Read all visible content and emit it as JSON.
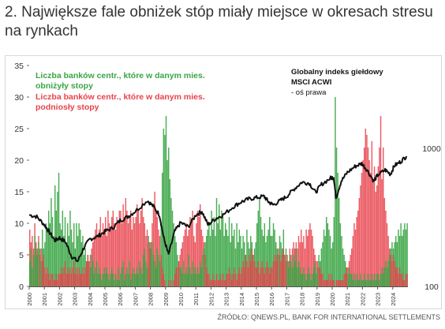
{
  "page": {
    "title": "2. Największe fale obniżek stóp miały miejsce w okresach stresu na rynkach",
    "source": "ŹRÓDŁO: QNEWS.PL, BANK FOR INTERNATIONAL SETTLEMENTS"
  },
  "colors": {
    "cut": "#3aa545",
    "hike": "#e8424b",
    "index": "#111111"
  },
  "chart_data": {
    "type": "bar",
    "left_axis": {
      "ylim": [
        0,
        35
      ],
      "ticks": [
        0,
        5,
        10,
        15,
        20,
        25,
        30,
        35
      ]
    },
    "right_axis": {
      "scale": "log",
      "ylim": [
        100,
        4000
      ],
      "ticks": [
        100,
        1000
      ]
    },
    "x_ticks": [
      "2000",
      "2001",
      "2002",
      "2003",
      "2004",
      "2005",
      "2006",
      "2007",
      "2008",
      "2009",
      "2010",
      "2011",
      "2012",
      "2013",
      "2014",
      "2015",
      "2016",
      "2017",
      "2018",
      "2019",
      "2020",
      "2021",
      "2022",
      "2023",
      "2024"
    ],
    "xlim": [
      2000,
      2025
    ],
    "grid": false,
    "legend": {
      "cut_label_1": "Liczba banków centr., które w danym mies.",
      "cut_label_2": "obniżyły stopy",
      "hike_label_1": "Liczba banków centr., które w danym mies.",
      "hike_label_2": "podniosły stopy",
      "index_label_1": "Globalny indeks giełdowy",
      "index_label_2": "MSCI ACWI",
      "index_label_3": "- oś prawa"
    },
    "series": [
      {
        "name": "obniżyły stopy",
        "kind": "monthly_bars",
        "yearly_monthly_values": [
          [
            4,
            6,
            3,
            5,
            8,
            6,
            5,
            7,
            6,
            4,
            9,
            6
          ],
          [
            7,
            10,
            9,
            12,
            10,
            14,
            11,
            8,
            16,
            12,
            15,
            18
          ],
          [
            10,
            9,
            12,
            8,
            11,
            7,
            10,
            8,
            12,
            9,
            7,
            10
          ],
          [
            6,
            10,
            8,
            10,
            9,
            7,
            8,
            5,
            6,
            4,
            5,
            4
          ],
          [
            3,
            5,
            4,
            2,
            3,
            4,
            2,
            3,
            2,
            1,
            2,
            3
          ],
          [
            2,
            3,
            2,
            1,
            2,
            3,
            2,
            1,
            2,
            1,
            3,
            1
          ],
          [
            2,
            3,
            4,
            1,
            2,
            3,
            2,
            4,
            1,
            2,
            3,
            2
          ],
          [
            2,
            3,
            2,
            4,
            3,
            2,
            5,
            6,
            4,
            3,
            8,
            7
          ],
          [
            6,
            7,
            5,
            4,
            3,
            6,
            5,
            4,
            10,
            18,
            25,
            24
          ],
          [
            27,
            20,
            22,
            17,
            14,
            12,
            10,
            8,
            7,
            5,
            4,
            3
          ],
          [
            3,
            2,
            4,
            2,
            3,
            2,
            5,
            3,
            2,
            4,
            2,
            3
          ],
          [
            2,
            3,
            2,
            4,
            3,
            5,
            6,
            7,
            8,
            9,
            10,
            8
          ],
          [
            12,
            9,
            11,
            8,
            14,
            10,
            13,
            9,
            12,
            11,
            8,
            10
          ],
          [
            9,
            8,
            11,
            7,
            10,
            8,
            9,
            6,
            10,
            7,
            9,
            8
          ],
          [
            6,
            8,
            7,
            5,
            9,
            7,
            6,
            8,
            7,
            5,
            6,
            7
          ],
          [
            10,
            12,
            14,
            11,
            9,
            8,
            10,
            7,
            8,
            9,
            11,
            8
          ],
          [
            8,
            10,
            9,
            7,
            6,
            5,
            8,
            7,
            6,
            9,
            5,
            6
          ],
          [
            4,
            3,
            5,
            4,
            3,
            5,
            4,
            6,
            3,
            4,
            3,
            2
          ],
          [
            2,
            3,
            2,
            1,
            2,
            3,
            2,
            1,
            2,
            3,
            4,
            2
          ],
          [
            3,
            5,
            4,
            6,
            7,
            9,
            8,
            11,
            10,
            9,
            8,
            6
          ],
          [
            7,
            11,
            30,
            22,
            18,
            14,
            10,
            8,
            6,
            5,
            4,
            3
          ],
          [
            2,
            3,
            2,
            2,
            1,
            2,
            1,
            2,
            1,
            1,
            2,
            1
          ],
          [
            1,
            2,
            1,
            1,
            2,
            1,
            1,
            2,
            1,
            2,
            1,
            2
          ],
          [
            2,
            1,
            2,
            3,
            2,
            3,
            4,
            3,
            4,
            5,
            6,
            7
          ],
          [
            6,
            7,
            8,
            7,
            9,
            8,
            10,
            8,
            9,
            10,
            9,
            10
          ]
        ]
      },
      {
        "name": "podniosły stopy",
        "kind": "monthly_bars",
        "yearly_monthly_values": [
          [
            9,
            7,
            8,
            6,
            10,
            7,
            6,
            8,
            5,
            6,
            4,
            5
          ],
          [
            3,
            2,
            3,
            2,
            1,
            2,
            2,
            1,
            1,
            2,
            1,
            2
          ],
          [
            2,
            3,
            2,
            3,
            4,
            2,
            3,
            2,
            3,
            2,
            3,
            4
          ],
          [
            2,
            3,
            2,
            3,
            2,
            2,
            3,
            2,
            3,
            4,
            5,
            4
          ],
          [
            5,
            6,
            7,
            8,
            9,
            10,
            8,
            9,
            11,
            8,
            10,
            9
          ],
          [
            11,
            8,
            12,
            10,
            9,
            11,
            12,
            10,
            9,
            11,
            10,
            12
          ],
          [
            12,
            10,
            13,
            11,
            14,
            12,
            10,
            11,
            12,
            9,
            11,
            10
          ],
          [
            11,
            13,
            12,
            10,
            12,
            14,
            11,
            10,
            8,
            9,
            7,
            6
          ],
          [
            7,
            10,
            13,
            15,
            12,
            11,
            9,
            8,
            5,
            3,
            2,
            1
          ],
          [
            0,
            0,
            1,
            0,
            1,
            0,
            1,
            2,
            3,
            3,
            4,
            5
          ],
          [
            6,
            7,
            8,
            9,
            10,
            8,
            9,
            11,
            10,
            12,
            8,
            7
          ],
          [
            10,
            12,
            11,
            13,
            9,
            8,
            7,
            5,
            3,
            2,
            2,
            1
          ],
          [
            1,
            2,
            1,
            1,
            2,
            1,
            1,
            2,
            1,
            2,
            1,
            1
          ],
          [
            2,
            2,
            3,
            2,
            1,
            2,
            3,
            2,
            1,
            2,
            3,
            2
          ],
          [
            3,
            4,
            3,
            5,
            4,
            3,
            5,
            4,
            6,
            5,
            4,
            3
          ],
          [
            3,
            4,
            2,
            3,
            4,
            3,
            2,
            3,
            4,
            3,
            2,
            3
          ],
          [
            3,
            4,
            5,
            4,
            5,
            6,
            5,
            4,
            5,
            6,
            5,
            4
          ],
          [
            5,
            4,
            6,
            5,
            6,
            7,
            6,
            7,
            6,
            8,
            7,
            9
          ],
          [
            7,
            8,
            6,
            9,
            8,
            9,
            10,
            9,
            8,
            6,
            5,
            4
          ],
          [
            4,
            3,
            3,
            2,
            2,
            1,
            1,
            1,
            1,
            2,
            1,
            2
          ],
          [
            1,
            1,
            0,
            1,
            1,
            1,
            1,
            1,
            1,
            2,
            2,
            3
          ],
          [
            3,
            4,
            5,
            6,
            8,
            10,
            9,
            11,
            12,
            14,
            16,
            18
          ],
          [
            20,
            22,
            25,
            24,
            22,
            20,
            18,
            23,
            17,
            19,
            15,
            16
          ],
          [
            19,
            22,
            27,
            17,
            22,
            14,
            12,
            10,
            8,
            6,
            5,
            4
          ],
          [
            5,
            4,
            3,
            3,
            2,
            3,
            2,
            2,
            1,
            1,
            2,
            2
          ]
        ]
      },
      {
        "name": "Globalny indeks giełdowy MSCI ACWI",
        "kind": "line",
        "axis": "right",
        "points": [
          [
            2000.0,
            330
          ],
          [
            2000.5,
            320
          ],
          [
            2001.0,
            280
          ],
          [
            2001.3,
            250
          ],
          [
            2001.7,
            215
          ],
          [
            2002.0,
            225
          ],
          [
            2002.4,
            210
          ],
          [
            2002.8,
            165
          ],
          [
            2003.2,
            152
          ],
          [
            2003.6,
            190
          ],
          [
            2004.0,
            220
          ],
          [
            2004.5,
            230
          ],
          [
            2005.0,
            250
          ],
          [
            2005.5,
            265
          ],
          [
            2006.0,
            300
          ],
          [
            2006.5,
            320
          ],
          [
            2007.0,
            350
          ],
          [
            2007.8,
            420
          ],
          [
            2008.2,
            380
          ],
          [
            2008.6,
            330
          ],
          [
            2008.9,
            220
          ],
          [
            2009.2,
            170
          ],
          [
            2009.6,
            250
          ],
          [
            2010.0,
            290
          ],
          [
            2010.5,
            270
          ],
          [
            2011.0,
            330
          ],
          [
            2011.4,
            350
          ],
          [
            2011.8,
            280
          ],
          [
            2012.3,
            310
          ],
          [
            2012.8,
            330
          ],
          [
            2013.5,
            380
          ],
          [
            2014.0,
            410
          ],
          [
            2014.5,
            430
          ],
          [
            2015.0,
            440
          ],
          [
            2015.5,
            450
          ],
          [
            2015.8,
            410
          ],
          [
            2016.1,
            390
          ],
          [
            2016.6,
            420
          ],
          [
            2017.0,
            450
          ],
          [
            2017.5,
            510
          ],
          [
            2018.0,
            570
          ],
          [
            2018.5,
            560
          ],
          [
            2018.9,
            480
          ],
          [
            2019.3,
            550
          ],
          [
            2019.9,
            610
          ],
          [
            2020.1,
            620
          ],
          [
            2020.25,
            440
          ],
          [
            2020.6,
            580
          ],
          [
            2021.0,
            670
          ],
          [
            2021.5,
            740
          ],
          [
            2021.95,
            780
          ],
          [
            2022.3,
            700
          ],
          [
            2022.75,
            580
          ],
          [
            2023.0,
            640
          ],
          [
            2023.5,
            700
          ],
          [
            2023.85,
            650
          ],
          [
            2024.1,
            750
          ],
          [
            2024.5,
            800
          ],
          [
            2024.9,
            880
          ]
        ]
      }
    ]
  }
}
